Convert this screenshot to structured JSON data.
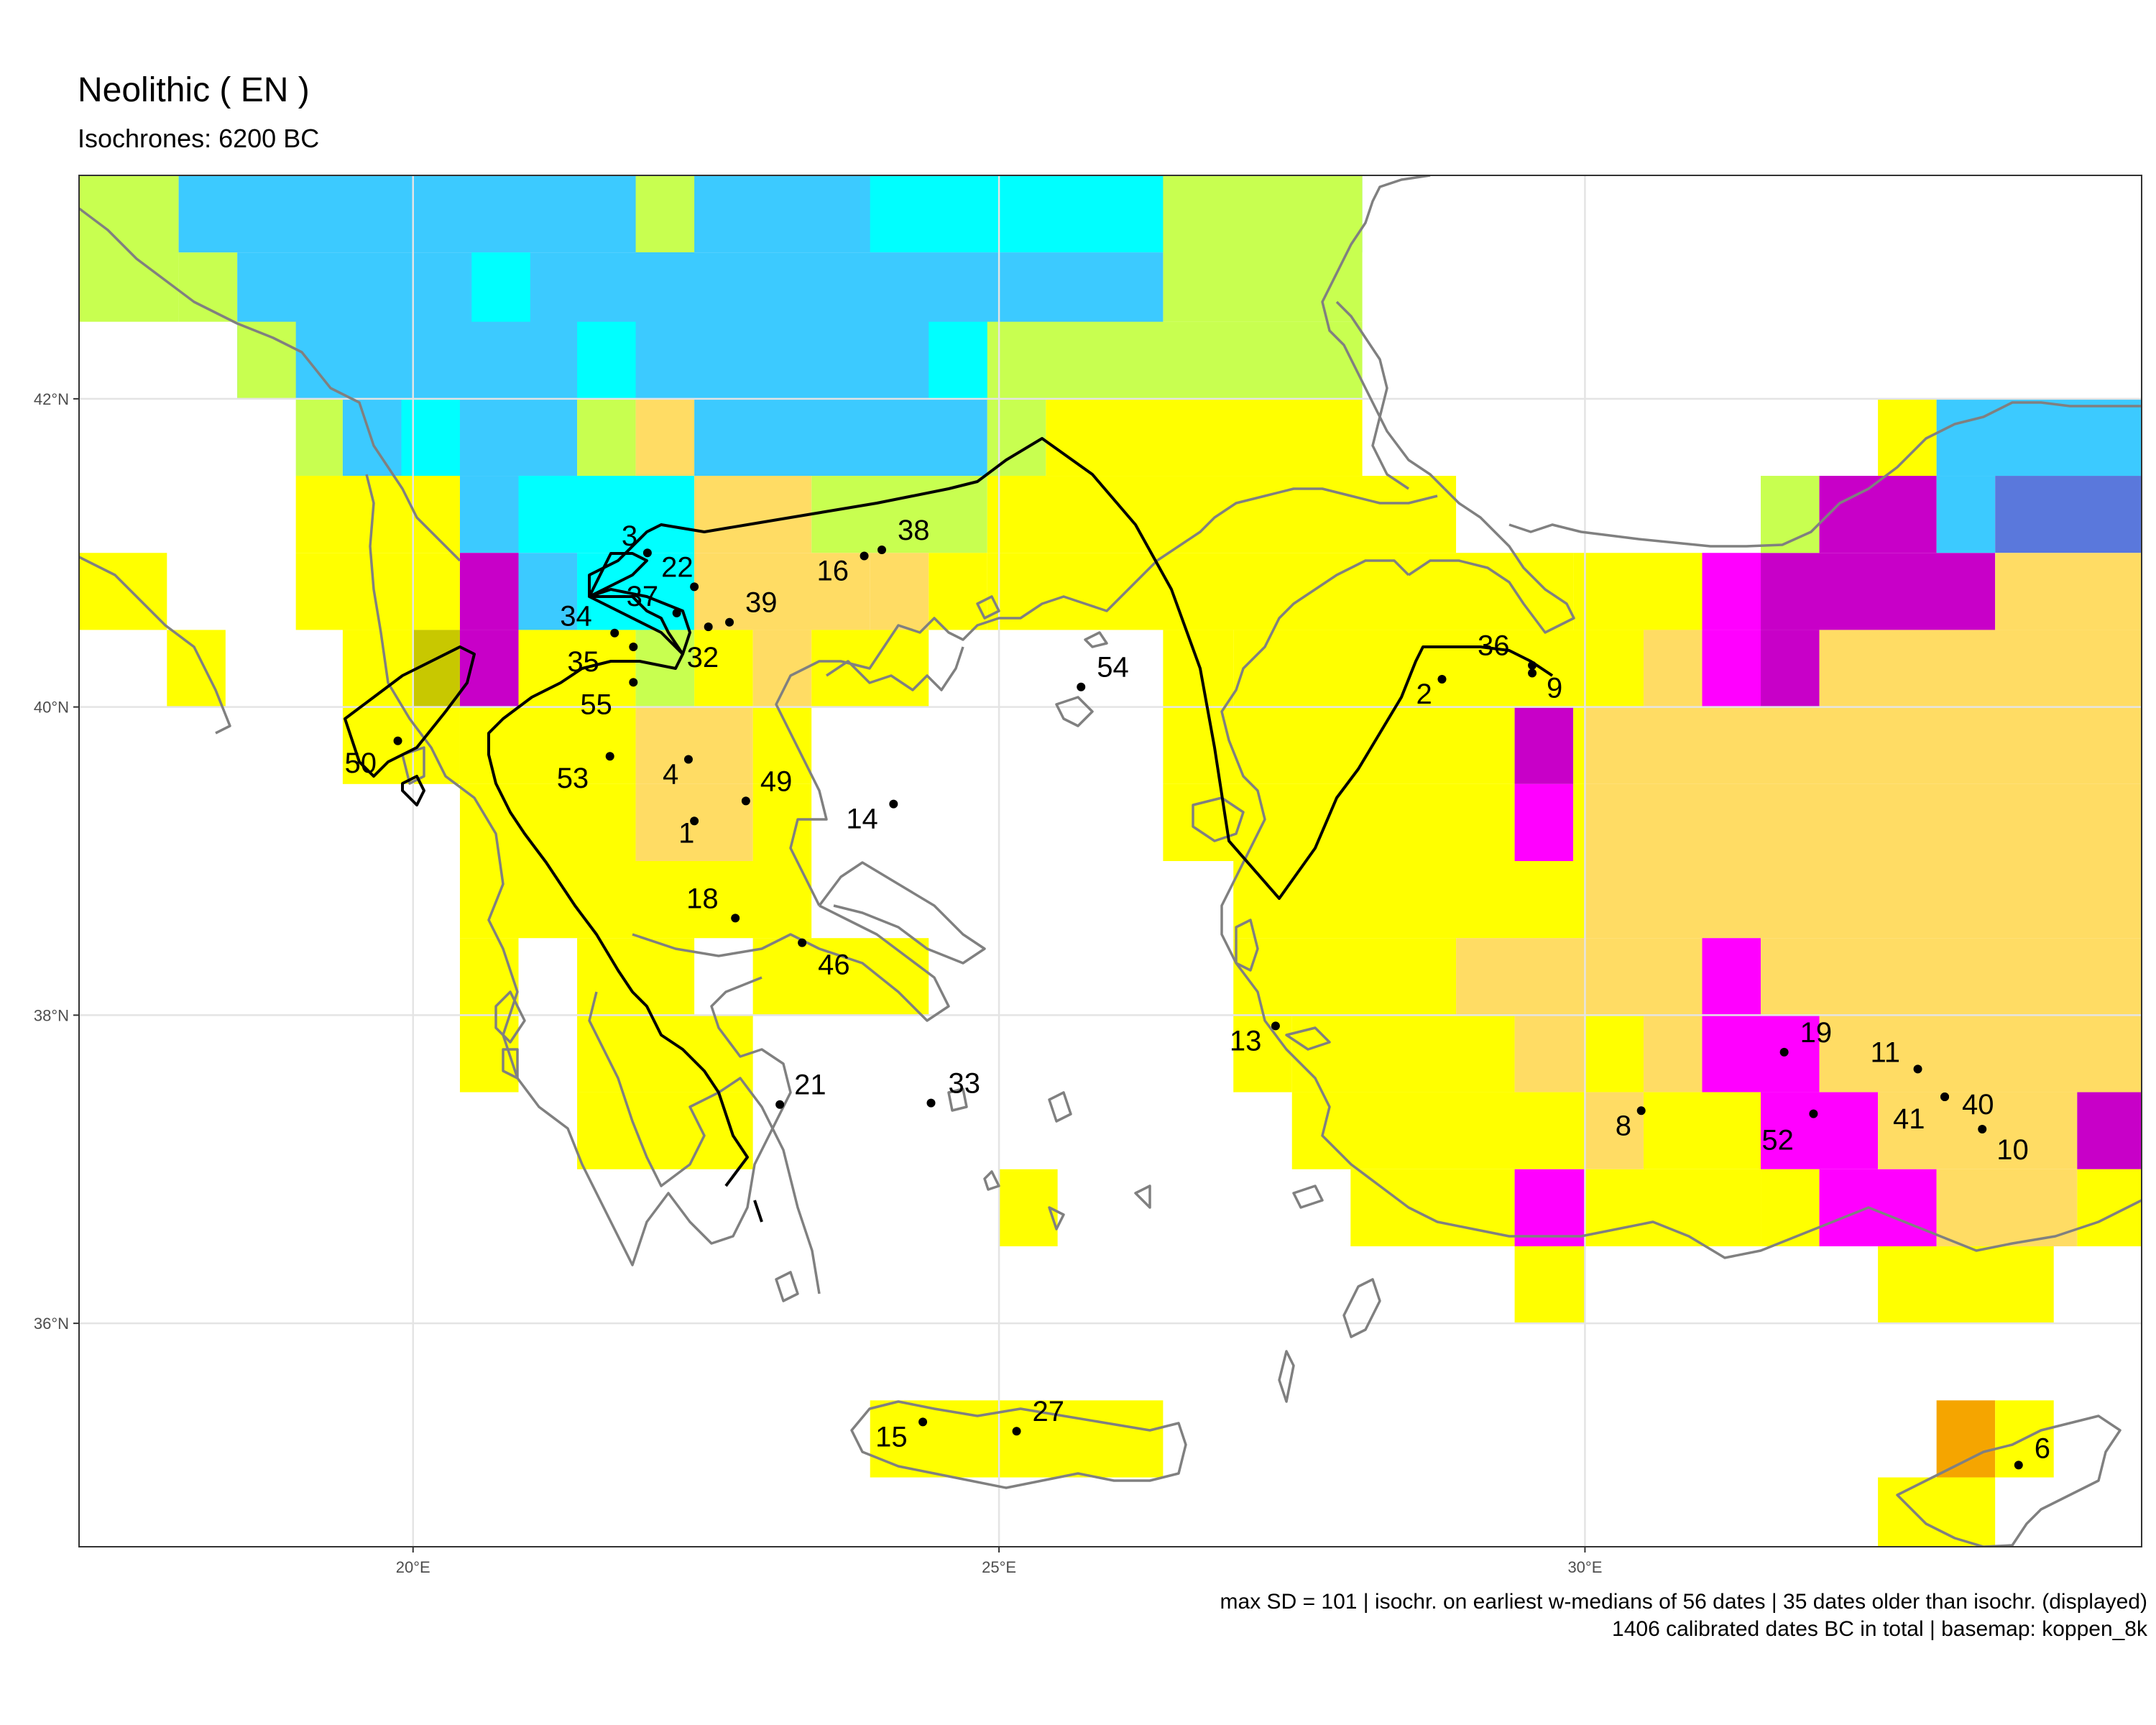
{
  "title": "Neolithic ( EN )",
  "subtitle": "Isochrones: 6200 BC",
  "caption_line1": "max SD = 101 | isochr. on earliest w-medians of 56 dates | 35 dates older than isochr. (displayed)",
  "caption_line2": "1406 calibrated dates BC in total | basemap: koppen_8k",
  "axes": {
    "x_ticks": [
      {
        "value": 20,
        "label": "20°E"
      },
      {
        "value": 25,
        "label": "25°E"
      },
      {
        "value": 30,
        "label": "30°E"
      }
    ],
    "y_ticks": [
      {
        "value": 36,
        "label": "36°N"
      },
      {
        "value": 38,
        "label": "38°N"
      },
      {
        "value": 40,
        "label": "40°N"
      },
      {
        "value": 42,
        "label": "42°N"
      }
    ],
    "lon_range": [
      17.15,
      34.75
    ],
    "lat_range": [
      34.55,
      43.45
    ],
    "grid": true
  },
  "koppen_colors": {
    "Y": "#ffff00",
    "G": "#c8ff50",
    "B": "#3ccaff",
    "C": "#00ffff",
    "T": "#ffdc64",
    "M": "#ff00ff",
    "P": "#c800c8",
    "D": "#5a78dc",
    "O": "#f5a500",
    "K": "#c8c800"
  },
  "koppen_cells": [
    {
      "lat": 42.95,
      "row": ".GGBBBBBBBBGBBBBBBBCCCCCCCCCGGGGGGGGGGGGGG....................."
    },
    {
      "lat": 42.45,
      "row": ".GGGGBBBBBBBBBBCBBBBBBBBBBBBBBBBBBBBBBBGGGGGGGGGG....................."
    },
    {
      "lat": 41.95,
      "row": "........GGGGGGGGGGGGGGGGGGGGGGGGGGGGGGGGGGG....................."
    },
    {
      "lat": 41.45,
      "row": "..........GGCCBBBBBBBBBBGGGGYYYYYYYYYYYYYYYYYYY..........."
    },
    {
      "lat": 40.95,
      "row": "........YYYYYYBBCCCCTTTTTGGGGGYYYYYYYYYYYYYYYYYY......."
    },
    {
      "lat": 40.45,
      "row": "YYYYYY..YYYYYYPPBBCCTTTTTTTTTTTTT...YYYYYYYYYYYYYYYYYYYYYYYYYYYY"
    }
  ],
  "cells": [
    {
      "lon": 17.4,
      "lat": 42.95,
      "k": "G"
    },
    {
      "lon": 17.9,
      "lat": 42.95,
      "k": "G"
    },
    {
      "lon": 18.4,
      "lat": 42.95,
      "k": "B"
    },
    {
      "lon": 18.9,
      "lat": 42.95,
      "k": "B"
    },
    {
      "lon": 19.4,
      "lat": 42.95,
      "k": "B"
    },
    {
      "lon": 19.9,
      "lat": 42.95,
      "k": "B"
    },
    {
      "lon": 20.4,
      "lat": 42.95,
      "k": "B"
    },
    {
      "lon": 20.9,
      "lat": 42.95,
      "k": "B"
    },
    {
      "lon": 21.4,
      "lat": 42.95,
      "k": "B"
    },
    {
      "lon": 21.9,
      "lat": 42.95,
      "k": "G"
    },
    {
      "lon": 22.4,
      "lat": 42.95,
      "k": "B"
    },
    {
      "lon": 22.9,
      "lat": 42.95,
      "k": "B"
    },
    {
      "lon": 23.4,
      "lat": 42.95,
      "k": "B"
    },
    {
      "lon": 23.9,
      "lat": 42.95,
      "k": "C"
    },
    {
      "lon": 24.4,
      "lat": 42.95,
      "k": "C"
    },
    {
      "lon": 24.9,
      "lat": 42.95,
      "k": "C"
    },
    {
      "lon": 25.4,
      "lat": 42.95,
      "k": "C"
    },
    {
      "lon": 25.9,
      "lat": 42.95,
      "k": "C"
    },
    {
      "lon": 26.4,
      "lat": 42.95,
      "k": "G"
    },
    {
      "lon": 26.9,
      "lat": 42.95,
      "k": "G"
    },
    {
      "lon": 27.4,
      "lat": 42.95,
      "k": "G"
    },
    {
      "lon": 27.9,
      "lat": 42.95,
      "k": "G"
    }
  ],
  "cities": [
    {
      "id": "1",
      "lon": 22.4,
      "lat": 39.26,
      "lx": -22,
      "ly": 30
    },
    {
      "id": "2",
      "lon": 28.78,
      "lat": 40.18,
      "lx": -36,
      "ly": 34
    },
    {
      "id": "3",
      "lon": 22.0,
      "lat": 41.0,
      "lx": -36,
      "ly": -10
    },
    {
      "id": "4",
      "lon": 22.35,
      "lat": 39.66,
      "lx": -36,
      "ly": 34
    },
    {
      "id": "6",
      "lon": 33.7,
      "lat": 35.08,
      "lx": 22,
      "ly": -10
    },
    {
      "id": "8",
      "lon": 30.48,
      "lat": 37.38,
      "lx": -36,
      "ly": 34
    },
    {
      "id": "9",
      "lon": 29.55,
      "lat": 40.22,
      "lx": 20,
      "ly": 34
    },
    {
      "id": "10",
      "lon": 33.39,
      "lat": 37.26,
      "lx": 20,
      "ly": 42
    },
    {
      "id": "11",
      "lon": 32.84,
      "lat": 37.65,
      "lx": -66,
      "ly": -10
    },
    {
      "id": "13",
      "lon": 27.36,
      "lat": 37.93,
      "lx": -64,
      "ly": 34
    },
    {
      "id": "14",
      "lon": 24.1,
      "lat": 39.37,
      "lx": -66,
      "ly": 34
    },
    {
      "id": "15",
      "lon": 24.35,
      "lat": 35.36,
      "lx": -66,
      "ly": 34
    },
    {
      "id": "16",
      "lon": 23.85,
      "lat": 40.98,
      "lx": -66,
      "ly": 34
    },
    {
      "id": "18",
      "lon": 22.75,
      "lat": 38.63,
      "lx": -68,
      "ly": -14
    },
    {
      "id": "19",
      "lon": 31.7,
      "lat": 37.76,
      "lx": 22,
      "ly": -14
    },
    {
      "id": "21",
      "lon": 23.13,
      "lat": 37.42,
      "lx": 20,
      "ly": -14
    },
    {
      "id": "22",
      "lon": 22.4,
      "lat": 40.78,
      "lx": -46,
      "ly": -14
    },
    {
      "id": "27",
      "lon": 25.15,
      "lat": 35.3,
      "lx": 22,
      "ly": -14
    },
    {
      "id": "32",
      "lon": 22.52,
      "lat": 40.52,
      "lx": -30,
      "ly": 56
    },
    {
      "id": "33",
      "lon": 24.42,
      "lat": 37.43,
      "lx": 24,
      "ly": -14
    },
    {
      "id": "34",
      "lon": 21.72,
      "lat": 40.48,
      "lx": -76,
      "ly": -10
    },
    {
      "id": "35",
      "lon": 21.88,
      "lat": 40.39,
      "lx": -92,
      "ly": 34
    },
    {
      "id": "36",
      "lon": 29.55,
      "lat": 40.27,
      "lx": -76,
      "ly": -14
    },
    {
      "id": "37",
      "lon": 22.25,
      "lat": 40.61,
      "lx": -70,
      "ly": -10
    },
    {
      "id": "38",
      "lon": 24.0,
      "lat": 41.02,
      "lx": 22,
      "ly": -14
    },
    {
      "id": "39",
      "lon": 22.7,
      "lat": 40.55,
      "lx": 22,
      "ly": -14
    },
    {
      "id": "40",
      "lon": 33.07,
      "lat": 37.47,
      "lx": 24,
      "ly": 24
    },
    {
      "id": "41",
      "lon": 33.07,
      "lat": 37.47,
      "lx": -72,
      "ly": 44
    },
    {
      "id": "46",
      "lon": 23.32,
      "lat": 38.47,
      "lx": 22,
      "ly": 44
    },
    {
      "id": "49",
      "lon": 22.84,
      "lat": 39.39,
      "lx": 20,
      "ly": -14
    },
    {
      "id": "50",
      "lon": 19.87,
      "lat": 39.78,
      "lx": -74,
      "ly": 44
    },
    {
      "id": "52",
      "lon": 31.95,
      "lat": 37.36,
      "lx": -72,
      "ly": 50
    },
    {
      "id": "53",
      "lon": 21.68,
      "lat": 39.68,
      "lx": -74,
      "ly": 44
    },
    {
      "id": "54",
      "lon": 25.7,
      "lat": 40.13,
      "lx": 22,
      "ly": -14
    },
    {
      "id": "55",
      "lon": 21.88,
      "lat": 40.16,
      "lx": -74,
      "ly": 44
    }
  ]
}
